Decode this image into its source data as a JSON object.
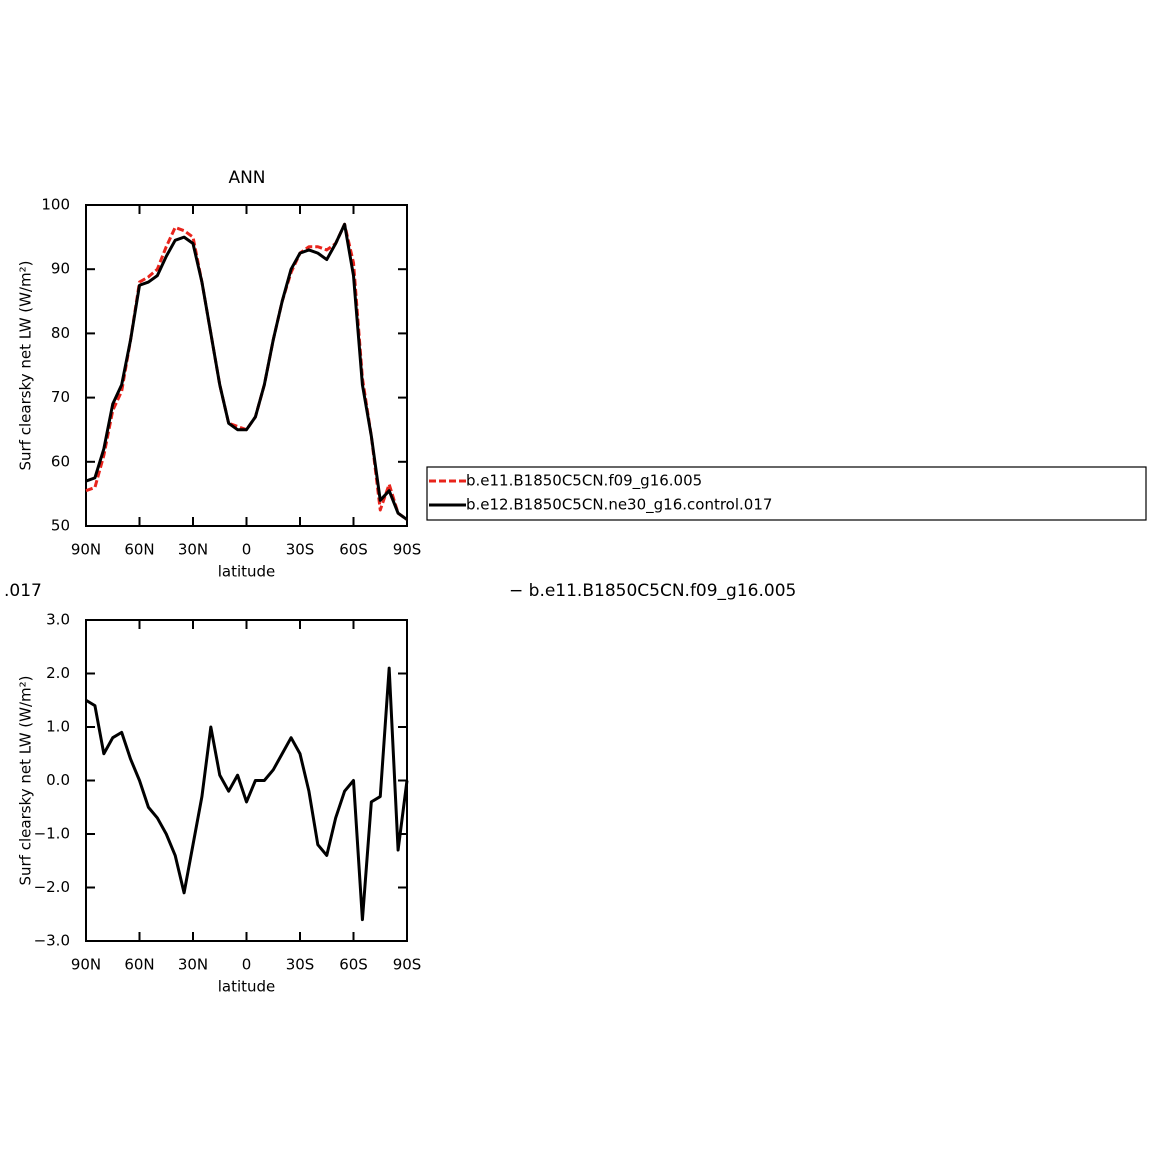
{
  "chart_data": [
    {
      "type": "line",
      "title": "ANN",
      "xlabel": "latitude",
      "ylabel": "Surf clearsky net LW (W/m²)",
      "x": [
        90,
        85,
        80,
        75,
        70,
        65,
        60,
        55,
        50,
        45,
        40,
        35,
        30,
        25,
        20,
        15,
        10,
        5,
        0,
        -5,
        -10,
        -15,
        -20,
        -25,
        -30,
        -35,
        -40,
        -45,
        -50,
        -55,
        -60,
        -65,
        -70,
        -75,
        -80,
        -85,
        -90
      ],
      "xlim": [
        90,
        -90
      ],
      "xticks": [
        {
          "value": 90,
          "label": "90N"
        },
        {
          "value": 60,
          "label": "60N"
        },
        {
          "value": 30,
          "label": "30N"
        },
        0,
        {
          "value": -30,
          "label": "30S"
        },
        {
          "value": -60,
          "label": "60S"
        },
        {
          "value": -90,
          "label": "90S"
        }
      ],
      "ylim": [
        50,
        100
      ],
      "yticks": [
        50,
        60,
        70,
        80,
        90,
        100
      ],
      "legend": "right",
      "series": [
        {
          "name": "b.e11.B1850C5CN.f09_g16.005",
          "color": "#e8241c",
          "dash": true,
          "values": [
            55.5,
            56,
            61,
            68,
            71,
            79,
            88,
            88.8,
            90,
            93.5,
            96.5,
            96,
            95,
            88,
            80,
            72,
            66,
            65.5,
            65,
            67,
            72,
            79,
            85,
            89.5,
            92.5,
            93.5,
            93.5,
            93,
            94,
            97,
            91,
            73,
            64,
            52.5,
            56.5,
            52,
            51
          ]
        },
        {
          "name": "b.e12.B1850C5CN.ne30_g16.control.017",
          "color": "#000000",
          "dash": false,
          "values": [
            57,
            57.5,
            62,
            69,
            72,
            79,
            87.5,
            88,
            89,
            92,
            94.5,
            95,
            94,
            88,
            80,
            72,
            66,
            65,
            65,
            67,
            72,
            79,
            85,
            90,
            92.5,
            93,
            92.5,
            91.5,
            94,
            97,
            89,
            72,
            64,
            54,
            55.5,
            52,
            51
          ]
        }
      ]
    },
    {
      "type": "line",
      "title_left": ".017",
      "title_right": "− b.e11.B1850C5CN.f09_g16.005",
      "xlabel": "latitude",
      "ylabel": "Surf clearsky net LW (W/m²)",
      "x": [
        90,
        85,
        80,
        75,
        70,
        65,
        60,
        55,
        50,
        45,
        40,
        35,
        30,
        25,
        20,
        15,
        10,
        5,
        0,
        -5,
        -10,
        -15,
        -20,
        -25,
        -30,
        -35,
        -40,
        -45,
        -50,
        -55,
        -60,
        -65,
        -70,
        -75,
        -80,
        -85,
        -90
      ],
      "xlim": [
        90,
        -90
      ],
      "xticks": [
        {
          "value": 90,
          "label": "90N"
        },
        {
          "value": 60,
          "label": "60N"
        },
        {
          "value": 30,
          "label": "30N"
        },
        0,
        {
          "value": -30,
          "label": "30S"
        },
        {
          "value": -60,
          "label": "60S"
        },
        {
          "value": -90,
          "label": "90S"
        }
      ],
      "ylim": [
        -3,
        3
      ],
      "yticks": [
        {
          "value": -3,
          "label": "−3.0"
        },
        {
          "value": -2,
          "label": "−2.0"
        },
        {
          "value": -1,
          "label": "−1.0"
        },
        {
          "value": 0,
          "label": "0.0"
        },
        {
          "value": 1,
          "label": "1.0"
        },
        {
          "value": 2,
          "label": "2.0"
        },
        {
          "value": 3,
          "label": "3.0"
        }
      ],
      "series": [
        {
          "color": "#000000",
          "dash": false,
          "values": [
            1.5,
            1.4,
            0.5,
            0.8,
            0.9,
            0.4,
            0.0,
            -0.5,
            -0.7,
            -1.0,
            -1.4,
            -2.1,
            -1.2,
            -0.3,
            1.0,
            0.1,
            -0.2,
            0.1,
            -0.4,
            0.0,
            0.0,
            0.2,
            0.5,
            0.8,
            0.5,
            -0.2,
            -1.2,
            -1.4,
            -0.7,
            -0.2,
            0.0,
            -2.6,
            -0.4,
            -0.3,
            2.1,
            -1.3,
            0.0
          ]
        }
      ]
    }
  ]
}
